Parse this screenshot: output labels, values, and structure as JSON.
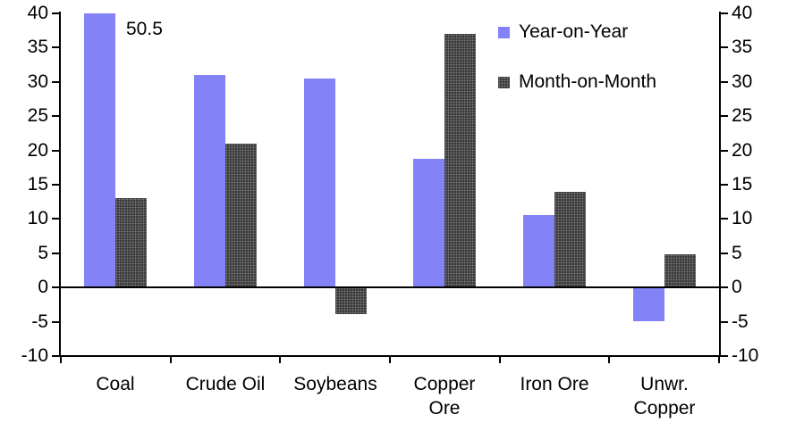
{
  "chart_data": {
    "type": "bar",
    "categories": [
      "Coal",
      "Crude Oil",
      "Soybeans",
      "Copper\nOre",
      "Iron Ore",
      "Unwr.\nCopper"
    ],
    "series": [
      {
        "name": "Year-on-Year",
        "color": "#8383f7",
        "pattern": "solid",
        "values": [
          50.5,
          31,
          30.5,
          18.8,
          10.6,
          -5
        ]
      },
      {
        "name": "Month-on-Month",
        "color": "#3f3f3f",
        "pattern": "dots",
        "values": [
          13,
          21,
          -3.9,
          37,
          13.9,
          4.8
        ]
      }
    ],
    "ylim": [
      -10,
      40
    ],
    "yticks": [
      -10,
      -5,
      0,
      5,
      10,
      15,
      20,
      25,
      30,
      35,
      40
    ],
    "axes": {
      "left": true,
      "right": true
    },
    "grid": false,
    "legend_position": "top-right",
    "annotation": {
      "text": "50.5",
      "category_index": 0,
      "series_index": 0,
      "note": "bar clipped at axis max"
    }
  }
}
